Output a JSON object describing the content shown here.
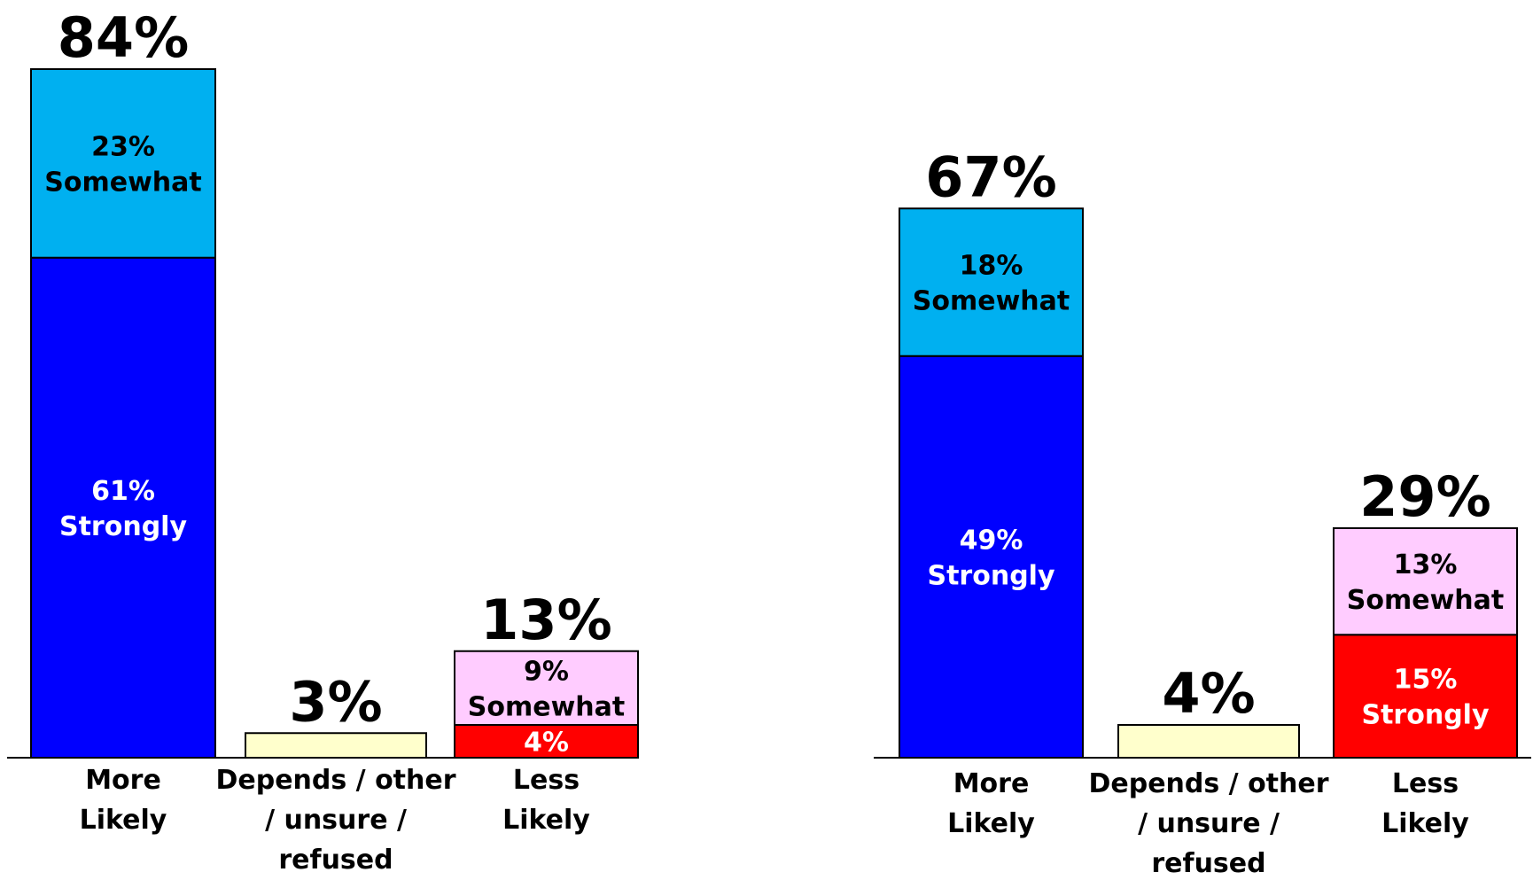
{
  "chart_data": [
    {
      "type": "bar",
      "stacked": true,
      "categories": [
        "More Likely",
        "Depends / other / unsure / refused",
        "Less Likely"
      ],
      "category_lines": [
        [
          "More",
          "Likely"
        ],
        [
          "Depends / other",
          "/ unsure /",
          "refused"
        ],
        [
          "Less",
          "Likely"
        ]
      ],
      "totals": [
        84,
        3,
        13
      ],
      "total_labels": [
        "84%",
        "3%",
        "13%"
      ],
      "stacks": [
        [
          {
            "value": 61,
            "lines": [
              "61%",
              "Strongly"
            ],
            "color": "#0000ff",
            "text_color": "#ffffff"
          },
          {
            "value": 23,
            "lines": [
              "23%",
              "Somewhat"
            ],
            "color": "#00b0f0",
            "text_color": "#000000"
          }
        ],
        [
          {
            "value": 3,
            "lines": [],
            "color": "#ffffcc",
            "text_color": "#000000"
          }
        ],
        [
          {
            "value": 4,
            "lines": [
              "4%"
            ],
            "color": "#ff0000",
            "text_color": "#ffffff"
          },
          {
            "value": 9,
            "lines": [
              "9%",
              "Somewhat"
            ],
            "color": "#ffccff",
            "text_color": "#000000"
          }
        ]
      ],
      "ylim": [
        0,
        84
      ],
      "grid": false,
      "legend": "none"
    },
    {
      "type": "bar",
      "stacked": true,
      "categories": [
        "More Likely",
        "Depends / other / unsure / refused",
        "Less Likely"
      ],
      "category_lines": [
        [
          "More",
          "Likely"
        ],
        [
          "Depends / other",
          "/ unsure /",
          "refused"
        ],
        [
          "Less",
          "Likely"
        ]
      ],
      "totals": [
        67,
        4,
        29
      ],
      "total_labels": [
        "67%",
        "4%",
        "29%"
      ],
      "stacks": [
        [
          {
            "value": 49,
            "lines": [
              "49%",
              "Strongly"
            ],
            "color": "#0000ff",
            "text_color": "#ffffff"
          },
          {
            "value": 18,
            "lines": [
              "18%",
              "Somewhat"
            ],
            "color": "#00b0f0",
            "text_color": "#000000"
          }
        ],
        [
          {
            "value": 4,
            "lines": [],
            "color": "#ffffcc",
            "text_color": "#000000"
          }
        ],
        [
          {
            "value": 15,
            "lines": [
              "15%",
              "Strongly"
            ],
            "color": "#ff0000",
            "text_color": "#ffffff"
          },
          {
            "value": 13,
            "lines": [
              "13%",
              "Somewhat"
            ],
            "color": "#ffccff",
            "text_color": "#000000"
          }
        ]
      ],
      "ylim": [
        0,
        84
      ],
      "grid": false,
      "legend": "none"
    }
  ]
}
